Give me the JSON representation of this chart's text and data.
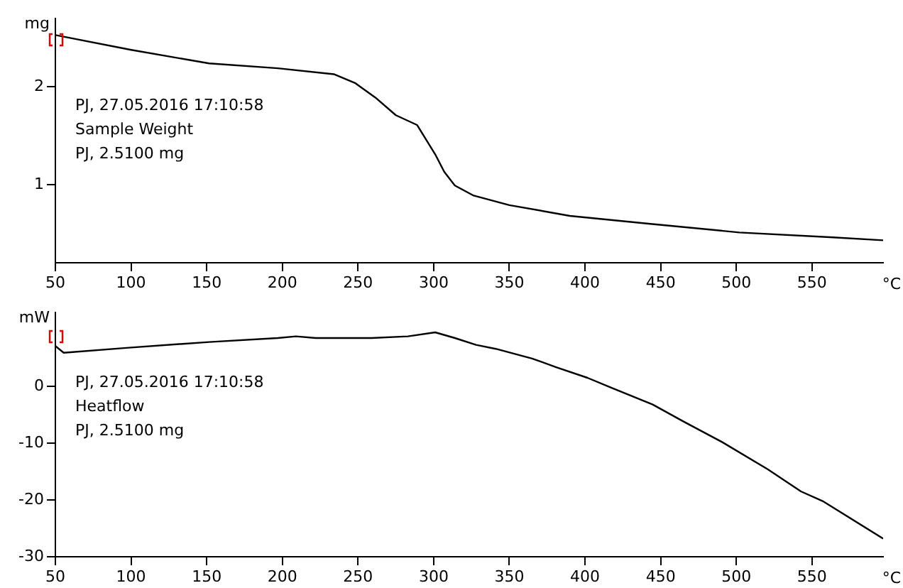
{
  "chart_data": [
    {
      "type": "line",
      "xlabel": "°C",
      "ylabel": "mg",
      "annotations": [
        "PJ, 27.05.2016 17:10:58",
        "Sample Weight",
        "PJ, 2.5100 mg"
      ],
      "xlim": [
        50,
        597
      ],
      "xticks": [
        50,
        100,
        150,
        200,
        250,
        300,
        350,
        400,
        450,
        500,
        550
      ],
      "ylim": [
        0.2,
        2.7
      ],
      "yticks": [
        1,
        2
      ],
      "grid": false,
      "legend": false,
      "marker": "none",
      "line_style": "solid",
      "series": [
        {
          "color": "#000000",
          "x": [
            50,
            99.5,
            151.6,
            197,
            234,
            248,
            261.5,
            275,
            289,
            301,
            307,
            314,
            326,
            350,
            390,
            442,
            502,
            564,
            597
          ],
          "values": [
            2.53,
            2.38,
            2.24,
            2.19,
            2.13,
            2.04,
            1.89,
            1.71,
            1.61,
            1.31,
            1.13,
            0.99,
            0.89,
            0.79,
            0.68,
            0.6,
            0.51,
            0.46,
            0.43
          ]
        }
      ]
    },
    {
      "type": "line",
      "xlabel": "°C",
      "ylabel": "mW",
      "annotations": [
        "PJ, 27.05.2016 17:10:58",
        "Heatflow",
        "PJ, 2.5100 mg"
      ],
      "xlim": [
        50,
        597
      ],
      "xticks": [
        50,
        100,
        150,
        200,
        250,
        300,
        350,
        400,
        450,
        500,
        550
      ],
      "ylim": [
        -30,
        13
      ],
      "yticks": [
        -30,
        -20,
        -10,
        0
      ],
      "grid": false,
      "legend": false,
      "marker": "none",
      "line_style": "solid",
      "series": [
        {
          "color": "#000000",
          "x": [
            50,
            55.5,
            98.5,
            151.6,
            197,
            209,
            222,
            240,
            259,
            283,
            301,
            314,
            328,
            341,
            365,
            380.6,
            401.6,
            417,
            444.7,
            465.8,
            490.5,
            520.7,
            542.7,
            557,
            597
          ],
          "values": [
            7.1,
            5.9,
            6.8,
            7.8,
            8.5,
            8.8,
            8.5,
            8.5,
            8.5,
            8.8,
            9.5,
            8.5,
            7.3,
            6.6,
            4.9,
            3.4,
            1.5,
            -0.2,
            -3.2,
            -6.3,
            -9.8,
            -14.6,
            -18.5,
            -20.2,
            -26.8
          ]
        }
      ]
    }
  ]
}
